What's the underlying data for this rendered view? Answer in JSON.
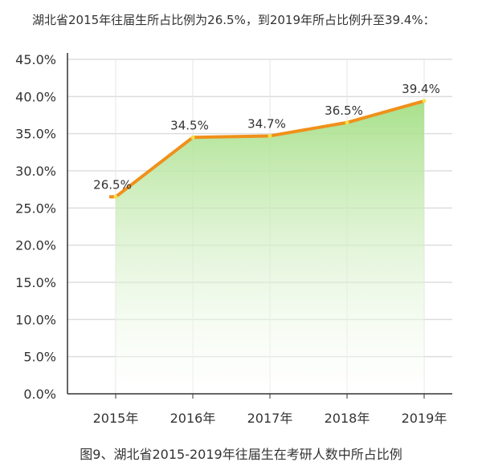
{
  "intro_text": "湖北省2015年往届生所占比例为26.5%，到2019年所占比例升至39.4%：",
  "caption": "图9、湖北省2015-2019年往届生在考研人数中所占比例",
  "chart_data": {
    "type": "area",
    "categories": [
      "2015年",
      "2016年",
      "2017年",
      "2018年",
      "2019年"
    ],
    "values": [
      26.5,
      34.5,
      34.7,
      36.5,
      39.4
    ],
    "data_labels": [
      "26.5%",
      "34.5%",
      "34.7%",
      "36.5%",
      "39.4%"
    ],
    "ylim": [
      0,
      45
    ],
    "yticks": [
      0,
      5,
      10,
      15,
      20,
      25,
      30,
      35,
      40,
      45
    ],
    "ytick_labels": [
      "0.0%",
      "5.0%",
      "10.0%",
      "15.0%",
      "20.0%",
      "25.0%",
      "30.0%",
      "35.0%",
      "40.0%",
      "45.0%"
    ],
    "grid": true,
    "colors": {
      "line": "#f0901a",
      "marker": "#f7e04a",
      "fill_top": "#a8e08a",
      "fill_bottom": "#ffffff",
      "grid": "#dddddd",
      "axis": "#333333"
    }
  }
}
